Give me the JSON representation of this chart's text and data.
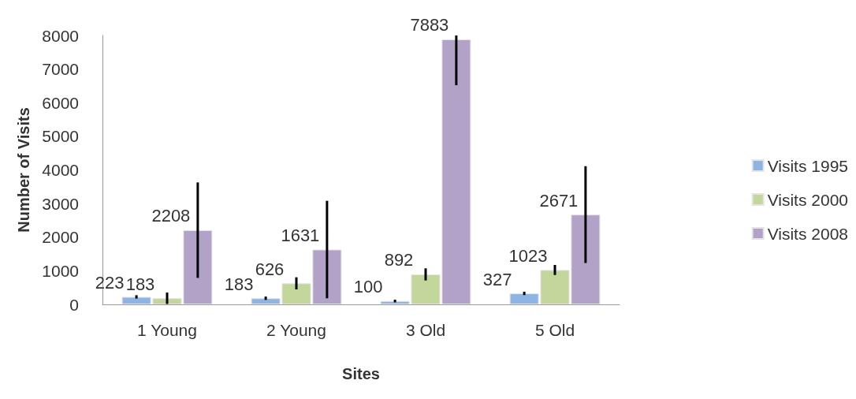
{
  "chart_data": {
    "type": "bar",
    "xlabel": "Sites",
    "ylabel": "Number of Visits",
    "categories": [
      "1 Young",
      "2 Young",
      "3 Old",
      "5 Old"
    ],
    "series": [
      {
        "name": "Visits 1995",
        "color": "#8eb4e3",
        "values": [
          223,
          183,
          100,
          327
        ],
        "errors": [
          50,
          50,
          40,
          50
        ]
      },
      {
        "name": "Visits 2000",
        "color": "#c3d69b",
        "values": [
          183,
          626,
          892,
          1023
        ],
        "errors": [
          170,
          180,
          180,
          150
        ]
      },
      {
        "name": "Visits 2008",
        "color": "#b3a2c7",
        "values": [
          2208,
          1631,
          7883,
          2671
        ],
        "errors": [
          1420,
          1450,
          [
            6520,
            8000
          ],
          1440
        ]
      }
    ],
    "ylim": [
      0,
      8000
    ],
    "yticks": [
      0,
      1000,
      2000,
      3000,
      4000,
      5000,
      6000,
      7000,
      8000
    ],
    "grid": false,
    "legend": "right",
    "data_labels": true
  }
}
